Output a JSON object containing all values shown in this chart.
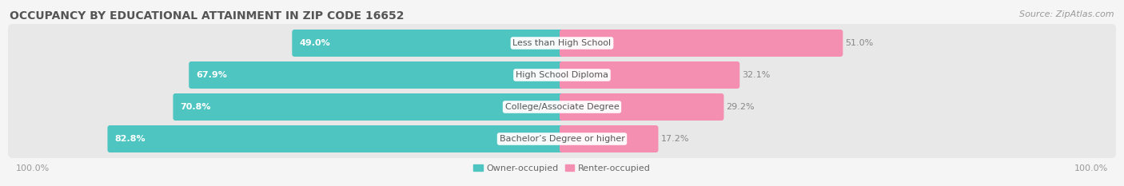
{
  "title": "OCCUPANCY BY EDUCATIONAL ATTAINMENT IN ZIP CODE 16652",
  "source": "Source: ZipAtlas.com",
  "categories": [
    "Less than High School",
    "High School Diploma",
    "College/Associate Degree",
    "Bachelor’s Degree or higher"
  ],
  "owner_pct": [
    49.0,
    67.9,
    70.8,
    82.8
  ],
  "renter_pct": [
    51.0,
    32.1,
    29.2,
    17.2
  ],
  "owner_color": "#4ec5c1",
  "renter_color": "#f48fb1",
  "fig_bg": "#f5f5f5",
  "row_bg": "#e8e8e8",
  "title_color": "#555555",
  "source_color": "#999999",
  "label_color": "#666666",
  "pct_inside_color": "#ffffff",
  "pct_outside_color": "#888888",
  "title_fontsize": 10,
  "bar_label_fontsize": 8,
  "cat_label_fontsize": 8,
  "source_fontsize": 8,
  "tick_fontsize": 8
}
